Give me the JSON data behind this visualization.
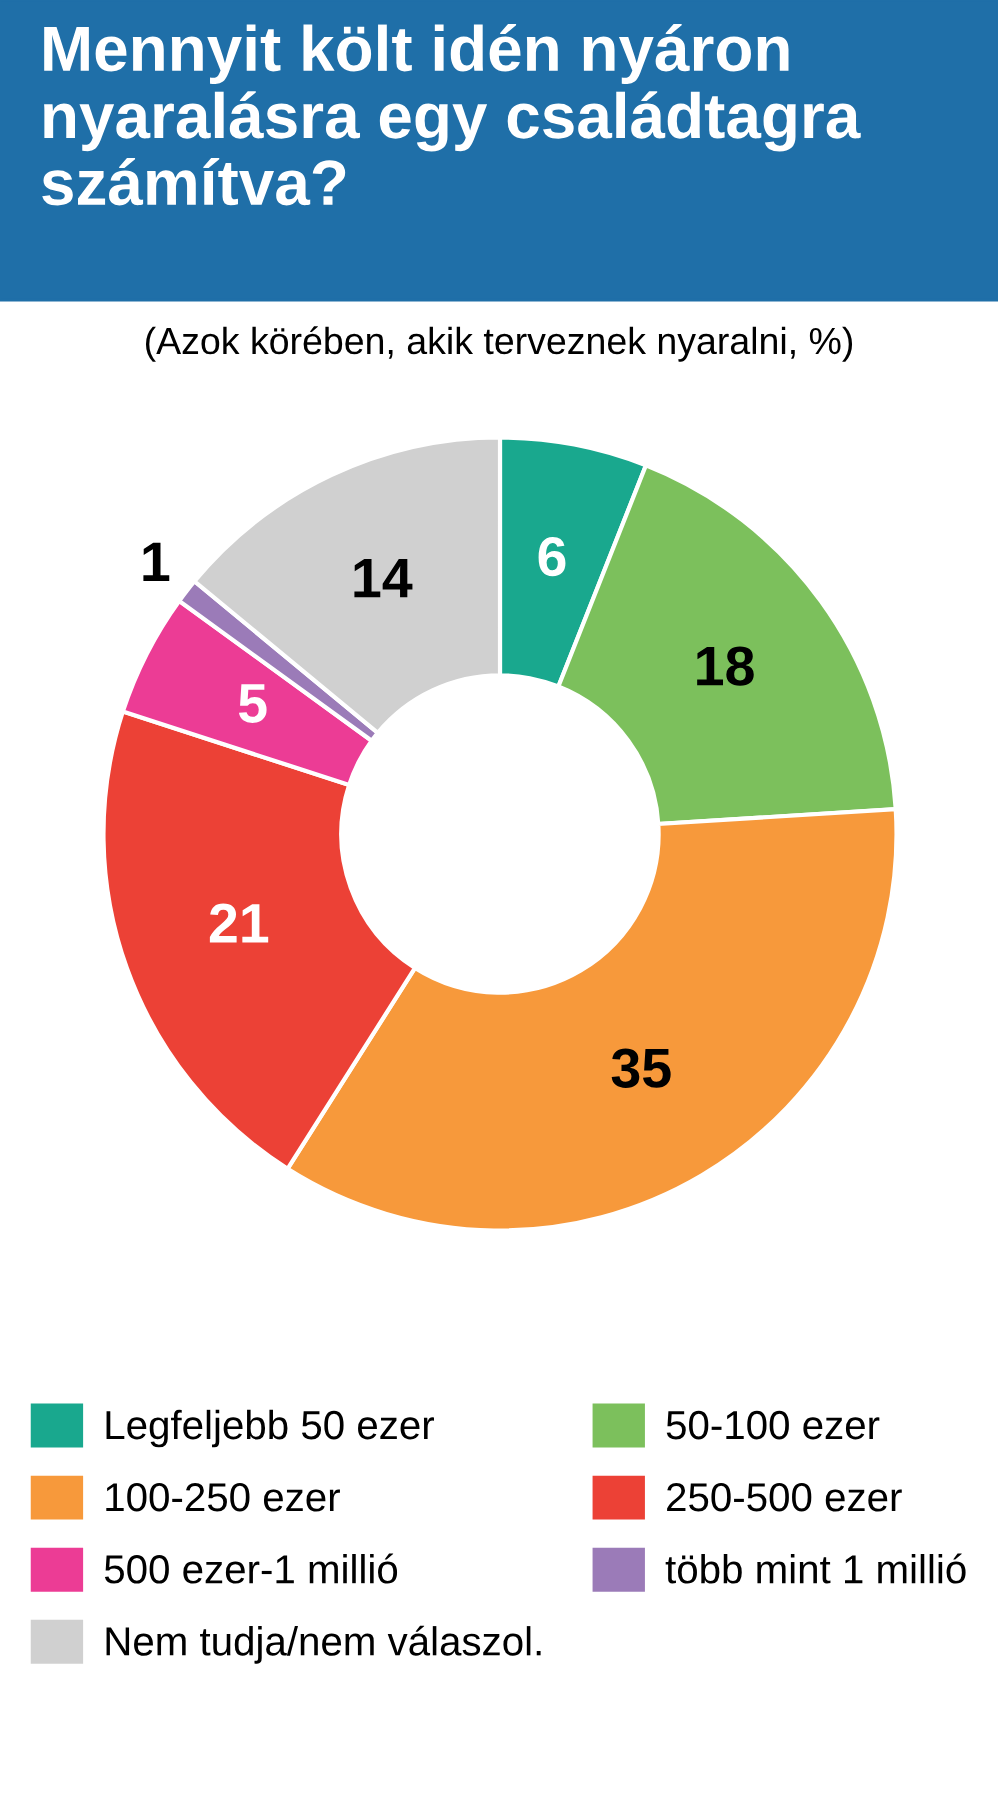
{
  "chart_data": {
    "type": "donut",
    "title": "Mennyit költ idén nyáron nyaralásra egy családtagra számítva?",
    "subtitle": "(Azok körében, akik terveznek nyaralni, %)",
    "categories": [
      "Legfeljebb 50 ezer",
      "50-100 ezer",
      "100-250 ezer",
      "250-500 ezer",
      "500 ezer-1 millió",
      "több mint 1 millió",
      "Nem tudja/nem válaszol."
    ],
    "values": [
      6,
      18,
      35,
      21,
      5,
      1,
      14
    ],
    "colors": [
      "#19a88e",
      "#7cc05c",
      "#f7993b",
      "#ec4136",
      "#ec3c95",
      "#9b7bb8",
      "#d0d0d0"
    ],
    "data_labels": true,
    "legend": "bottom"
  }
}
